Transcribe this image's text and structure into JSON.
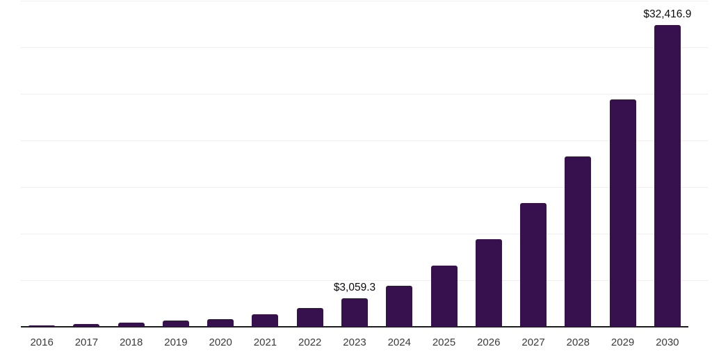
{
  "chart_data": {
    "type": "bar",
    "title": "",
    "xlabel": "",
    "ylabel": "",
    "categories": [
      "2016",
      "2017",
      "2018",
      "2019",
      "2020",
      "2021",
      "2022",
      "2023",
      "2024",
      "2025",
      "2026",
      "2027",
      "2028",
      "2029",
      "2030"
    ],
    "values": [
      160,
      270,
      460,
      650,
      810,
      1330,
      2040,
      3059.3,
      4400,
      6570,
      9400,
      13250,
      18280,
      24400,
      32416.9
    ],
    "annotations": [
      {
        "index": 7,
        "text": "$3,059.3"
      },
      {
        "index": 14,
        "text": "$32,416.9"
      }
    ],
    "ylim": [
      0,
      35000
    ],
    "gridline_step": 5000,
    "grid": "horizontal",
    "legend_position": "none",
    "colors": {
      "bar": "#36114D",
      "axis": "#1c1c1c",
      "gridline": "#efeff1",
      "tick_label": "#3a3a3a",
      "data_label": "#0a0a0a"
    }
  }
}
